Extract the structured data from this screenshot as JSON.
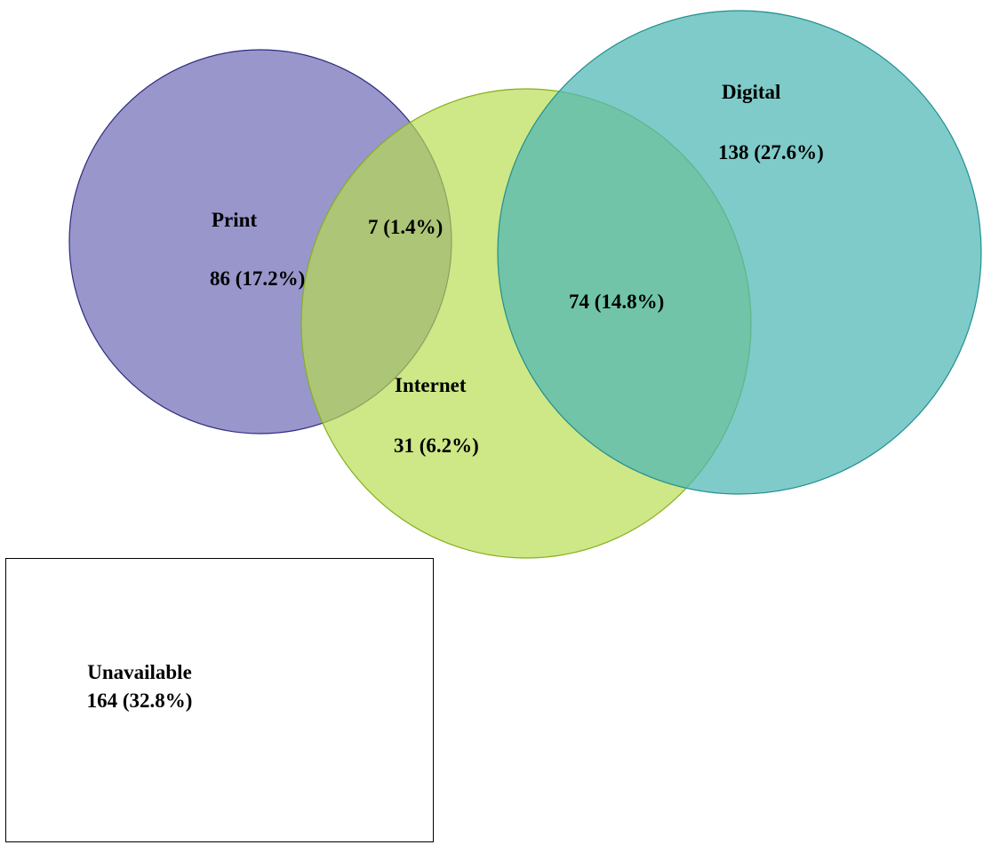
{
  "sets": {
    "print": {
      "name": "Print",
      "only_value": "86 (17.2%)",
      "fill": "#7b78bd",
      "stroke": "#2f2b7f"
    },
    "internet": {
      "name": "Internet",
      "only_value": "31 (6.2%)",
      "fill": "#b7dc4e",
      "stroke": "#86b01c"
    },
    "digital": {
      "name": "Digital",
      "only_value": "138 (27.6%)",
      "fill": "#4db7b6",
      "stroke": "#21908f"
    }
  },
  "intersections": {
    "print_internet": "7 (1.4%)",
    "internet_digital": "74 (14.8%)"
  },
  "unavailable": {
    "name": "Unavailable",
    "value": "164 (32.8%)"
  }
}
